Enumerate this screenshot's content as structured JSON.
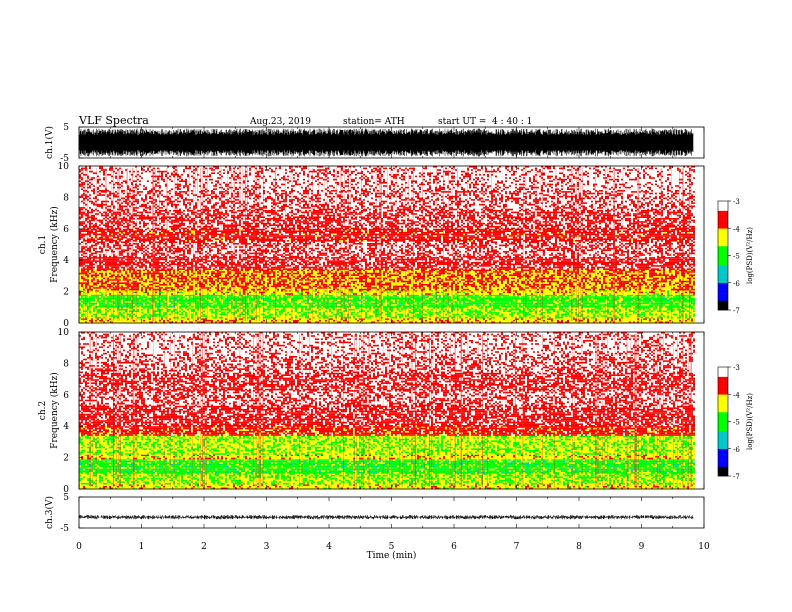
{
  "header": {
    "title": "VLF  Spectra",
    "date": "Aug.23, 2019",
    "station": "station= ATH",
    "start_label": "start  UT  =",
    "start_time": "4  : 40 : 1"
  },
  "chart_data": [
    {
      "type": "line",
      "panel": "ch1-waveform",
      "ylabel": "ch.1(V)",
      "ylim": [
        -5,
        5
      ],
      "ytick_labels": [
        "5",
        "-5"
      ],
      "xlim": [
        0,
        10
      ],
      "series": [
        {
          "color": "#000000",
          "amplitude_range": [
            -4.5,
            4.5
          ],
          "x_end": 9.83
        }
      ]
    },
    {
      "type": "heatmap",
      "panel": "ch1-spectrogram",
      "ylabel_line1": "ch.1",
      "ylabel_line2": "Frequency  (kHz)",
      "ylim": [
        0,
        10
      ],
      "ytick_labels": [
        "10",
        "8",
        "6",
        "4",
        "2",
        "0"
      ],
      "xlim": [
        0,
        10
      ],
      "x_end": 9.83,
      "colorbar": {
        "label": "log(PSD)(V²/Hz)",
        "range": [
          -7,
          -3
        ],
        "tick_labels": [
          "-3",
          "-4",
          "-5",
          "-6",
          "-7"
        ],
        "colors": [
          "#000000",
          "#0000ff",
          "#00c8c8",
          "#00ff00",
          "#ffff00",
          "#ff0000",
          "#ffffff"
        ]
      },
      "bands": [
        {
          "f": [
            0,
            0.3
          ],
          "level": -4.2
        },
        {
          "f": [
            0.3,
            1.0
          ],
          "level": -4.6
        },
        {
          "f": [
            1.0,
            1.8
          ],
          "level": -4.9
        },
        {
          "f": [
            1.8,
            2.1
          ],
          "level": -4.3
        },
        {
          "f": [
            2.1,
            3.4
          ],
          "level": -4.0
        },
        {
          "f": [
            3.4,
            4.2
          ],
          "level": -3.5
        },
        {
          "f": [
            4.2,
            5.2
          ],
          "level": -3.3
        },
        {
          "f": [
            5.2,
            6.0
          ],
          "level": -3.6
        },
        {
          "f": [
            6.0,
            7.2
          ],
          "level": -3.4
        },
        {
          "f": [
            7.2,
            8.4
          ],
          "level": -3.25
        },
        {
          "f": [
            8.4,
            10.0
          ],
          "level": -3.15
        }
      ]
    },
    {
      "type": "heatmap",
      "panel": "ch2-spectrogram",
      "ylabel_line1": "ch.2",
      "ylabel_line2": "Frequency  (kHz)",
      "ylim": [
        0,
        10
      ],
      "ytick_labels": [
        "10",
        "8",
        "6",
        "4",
        "2",
        "0"
      ],
      "xlim": [
        0,
        10
      ],
      "x_end": 9.83,
      "colorbar": {
        "label": "log(PSD)(V²/Hz)",
        "range": [
          -7,
          -3
        ],
        "tick_labels": [
          "-3",
          "-4",
          "-5",
          "-6",
          "-7"
        ],
        "colors": [
          "#000000",
          "#0000ff",
          "#00c8c8",
          "#00ff00",
          "#ffff00",
          "#ff0000",
          "#ffffff"
        ]
      },
      "bands": [
        {
          "f": [
            0,
            0.3
          ],
          "level": -4.3
        },
        {
          "f": [
            0.3,
            1.0
          ],
          "level": -4.6
        },
        {
          "f": [
            1.0,
            1.9
          ],
          "level": -4.95
        },
        {
          "f": [
            1.9,
            2.2
          ],
          "level": -4.3
        },
        {
          "f": [
            2.2,
            3.4
          ],
          "level": -4.55
        },
        {
          "f": [
            3.4,
            4.0
          ],
          "level": -3.7
        },
        {
          "f": [
            4.0,
            5.3
          ],
          "level": -3.5
        },
        {
          "f": [
            5.3,
            6.3
          ],
          "level": -3.3
        },
        {
          "f": [
            6.3,
            7.4
          ],
          "level": -3.45
        },
        {
          "f": [
            7.4,
            8.4
          ],
          "level": -3.25
        },
        {
          "f": [
            8.4,
            10.0
          ],
          "level": -3.15
        }
      ]
    },
    {
      "type": "line",
      "panel": "ch3-waveform",
      "ylabel": "ch.3(V)",
      "ylim": [
        -5,
        5
      ],
      "ytick_labels": [
        "5",
        "-5"
      ],
      "xlim": [
        0,
        10
      ],
      "xlabel": "Time  (min)",
      "xtick_labels": [
        "0",
        "1",
        "2",
        "3",
        "4",
        "5",
        "6",
        "7",
        "8",
        "9",
        "10"
      ],
      "series": [
        {
          "color": "#000000",
          "center": -1.5,
          "amplitude_range": [
            -2.2,
            -0.8
          ],
          "x_end": 9.83
        }
      ]
    }
  ]
}
